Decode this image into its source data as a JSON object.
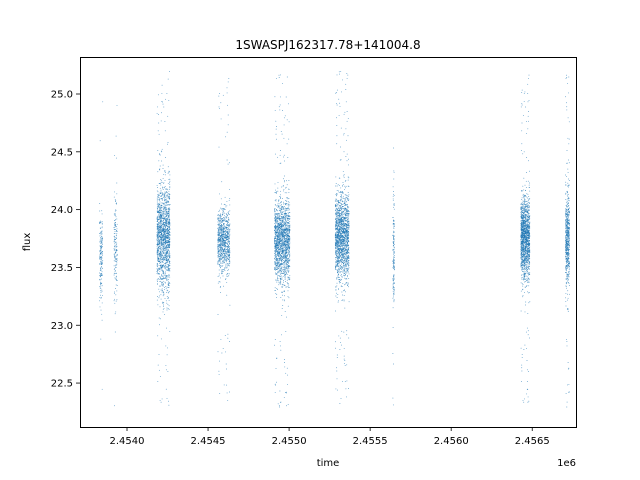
{
  "chart_data": {
    "type": "scatter",
    "title": "1SWASPJ162317.78+141004.8",
    "xlabel": "time",
    "ylabel": "flux",
    "x_offset_label": "1e6",
    "xlim": [
      2453710,
      2456770
    ],
    "ylim": [
      22.12,
      25.32
    ],
    "x_ticks": [
      2454000,
      2454500,
      2455000,
      2455500,
      2456000,
      2456500
    ],
    "x_tick_labels": [
      "2.4540",
      "2.4545",
      "2.4550",
      "2.4555",
      "2.4560",
      "2.4565"
    ],
    "y_ticks": [
      22.5,
      23.0,
      23.5,
      24.0,
      24.5,
      25.0
    ],
    "y_tick_labels": [
      "22.5",
      "23.0",
      "23.5",
      "24.0",
      "24.5",
      "25.0"
    ],
    "grid": false,
    "series_color": "#1f77b4",
    "point_groups": [
      {
        "x_start": 2453830,
        "x_end": 2453850,
        "y_center": 23.6,
        "y_spread": 0.35,
        "count": 180
      },
      {
        "x_start": 2453920,
        "x_end": 2453940,
        "y_center": 23.65,
        "y_spread": 0.38,
        "count": 160
      },
      {
        "x_start": 2454185,
        "x_end": 2454265,
        "y_center": 23.75,
        "y_spread": 0.42,
        "count": 1600
      },
      {
        "x_start": 2454560,
        "x_end": 2454635,
        "y_center": 23.72,
        "y_spread": 0.25,
        "count": 900
      },
      {
        "x_start": 2454910,
        "x_end": 2455005,
        "y_center": 23.72,
        "y_spread": 0.33,
        "count": 1700
      },
      {
        "x_start": 2455285,
        "x_end": 2455370,
        "y_center": 23.75,
        "y_spread": 0.35,
        "count": 1700
      },
      {
        "x_start": 2455640,
        "x_end": 2455650,
        "y_center": 23.6,
        "y_spread": 0.45,
        "count": 160
      },
      {
        "x_start": 2456430,
        "x_end": 2456485,
        "y_center": 23.75,
        "y_spread": 0.32,
        "count": 1500
      },
      {
        "x_start": 2456705,
        "x_end": 2456730,
        "y_center": 23.72,
        "y_spread": 0.38,
        "count": 600
      }
    ]
  }
}
